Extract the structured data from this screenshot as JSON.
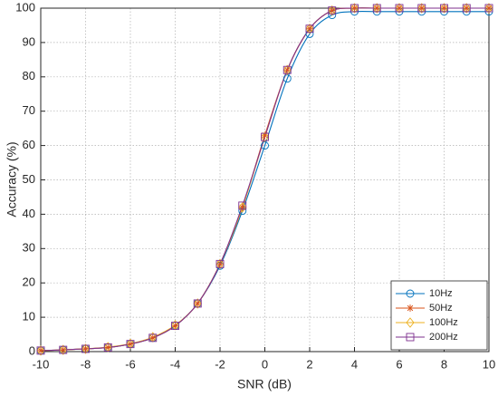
{
  "chart_data": {
    "type": "line",
    "x_label": "SNR (dB)",
    "y_label": "Accuracy (%)",
    "x": [
      -10,
      -9,
      -8,
      -7,
      -6,
      -5,
      -4,
      -3,
      -2,
      -1,
      0,
      1,
      2,
      3,
      4,
      5,
      6,
      7,
      8,
      9,
      10
    ],
    "series": [
      {
        "name": "10Hz",
        "color": "#0072BD",
        "marker": "circle",
        "values": [
          0.3,
          0.5,
          0.8,
          1.2,
          2.2,
          4.0,
          7.5,
          14,
          25,
          41,
          60,
          79.5,
          92.5,
          98,
          99,
          99,
          99,
          99,
          99,
          99,
          99
        ]
      },
      {
        "name": "50Hz",
        "color": "#D95319",
        "marker": "asterisk",
        "values": [
          0.3,
          0.5,
          0.8,
          1.2,
          2.2,
          4.0,
          7.5,
          14,
          25.5,
          42,
          63,
          82,
          94,
          99.3,
          100,
          100,
          100,
          100,
          100,
          100,
          100
        ]
      },
      {
        "name": "100Hz",
        "color": "#EDB120",
        "marker": "diamond",
        "values": [
          0.3,
          0.5,
          0.8,
          1.3,
          2.3,
          4.2,
          7.7,
          14,
          25.5,
          42,
          62.5,
          82,
          94,
          99.3,
          100,
          100,
          100,
          100,
          100,
          100,
          100
        ]
      },
      {
        "name": "200Hz",
        "color": "#7E2F8E",
        "marker": "square",
        "values": [
          0.3,
          0.5,
          0.8,
          1.2,
          2.2,
          4.0,
          7.5,
          14,
          25.5,
          42.5,
          62.5,
          82,
          94,
          99.3,
          100,
          100,
          100,
          100,
          100,
          100,
          100
        ]
      }
    ],
    "xlim": [
      -10,
      10
    ],
    "xticks": [
      -10,
      -8,
      -6,
      -4,
      -2,
      0,
      2,
      4,
      6,
      8,
      10
    ],
    "ylim": [
      0,
      100
    ],
    "yticks": [
      0,
      10,
      20,
      30,
      40,
      50,
      60,
      70,
      80,
      90,
      100
    ],
    "grid": true,
    "legend_position": "lower-right"
  }
}
